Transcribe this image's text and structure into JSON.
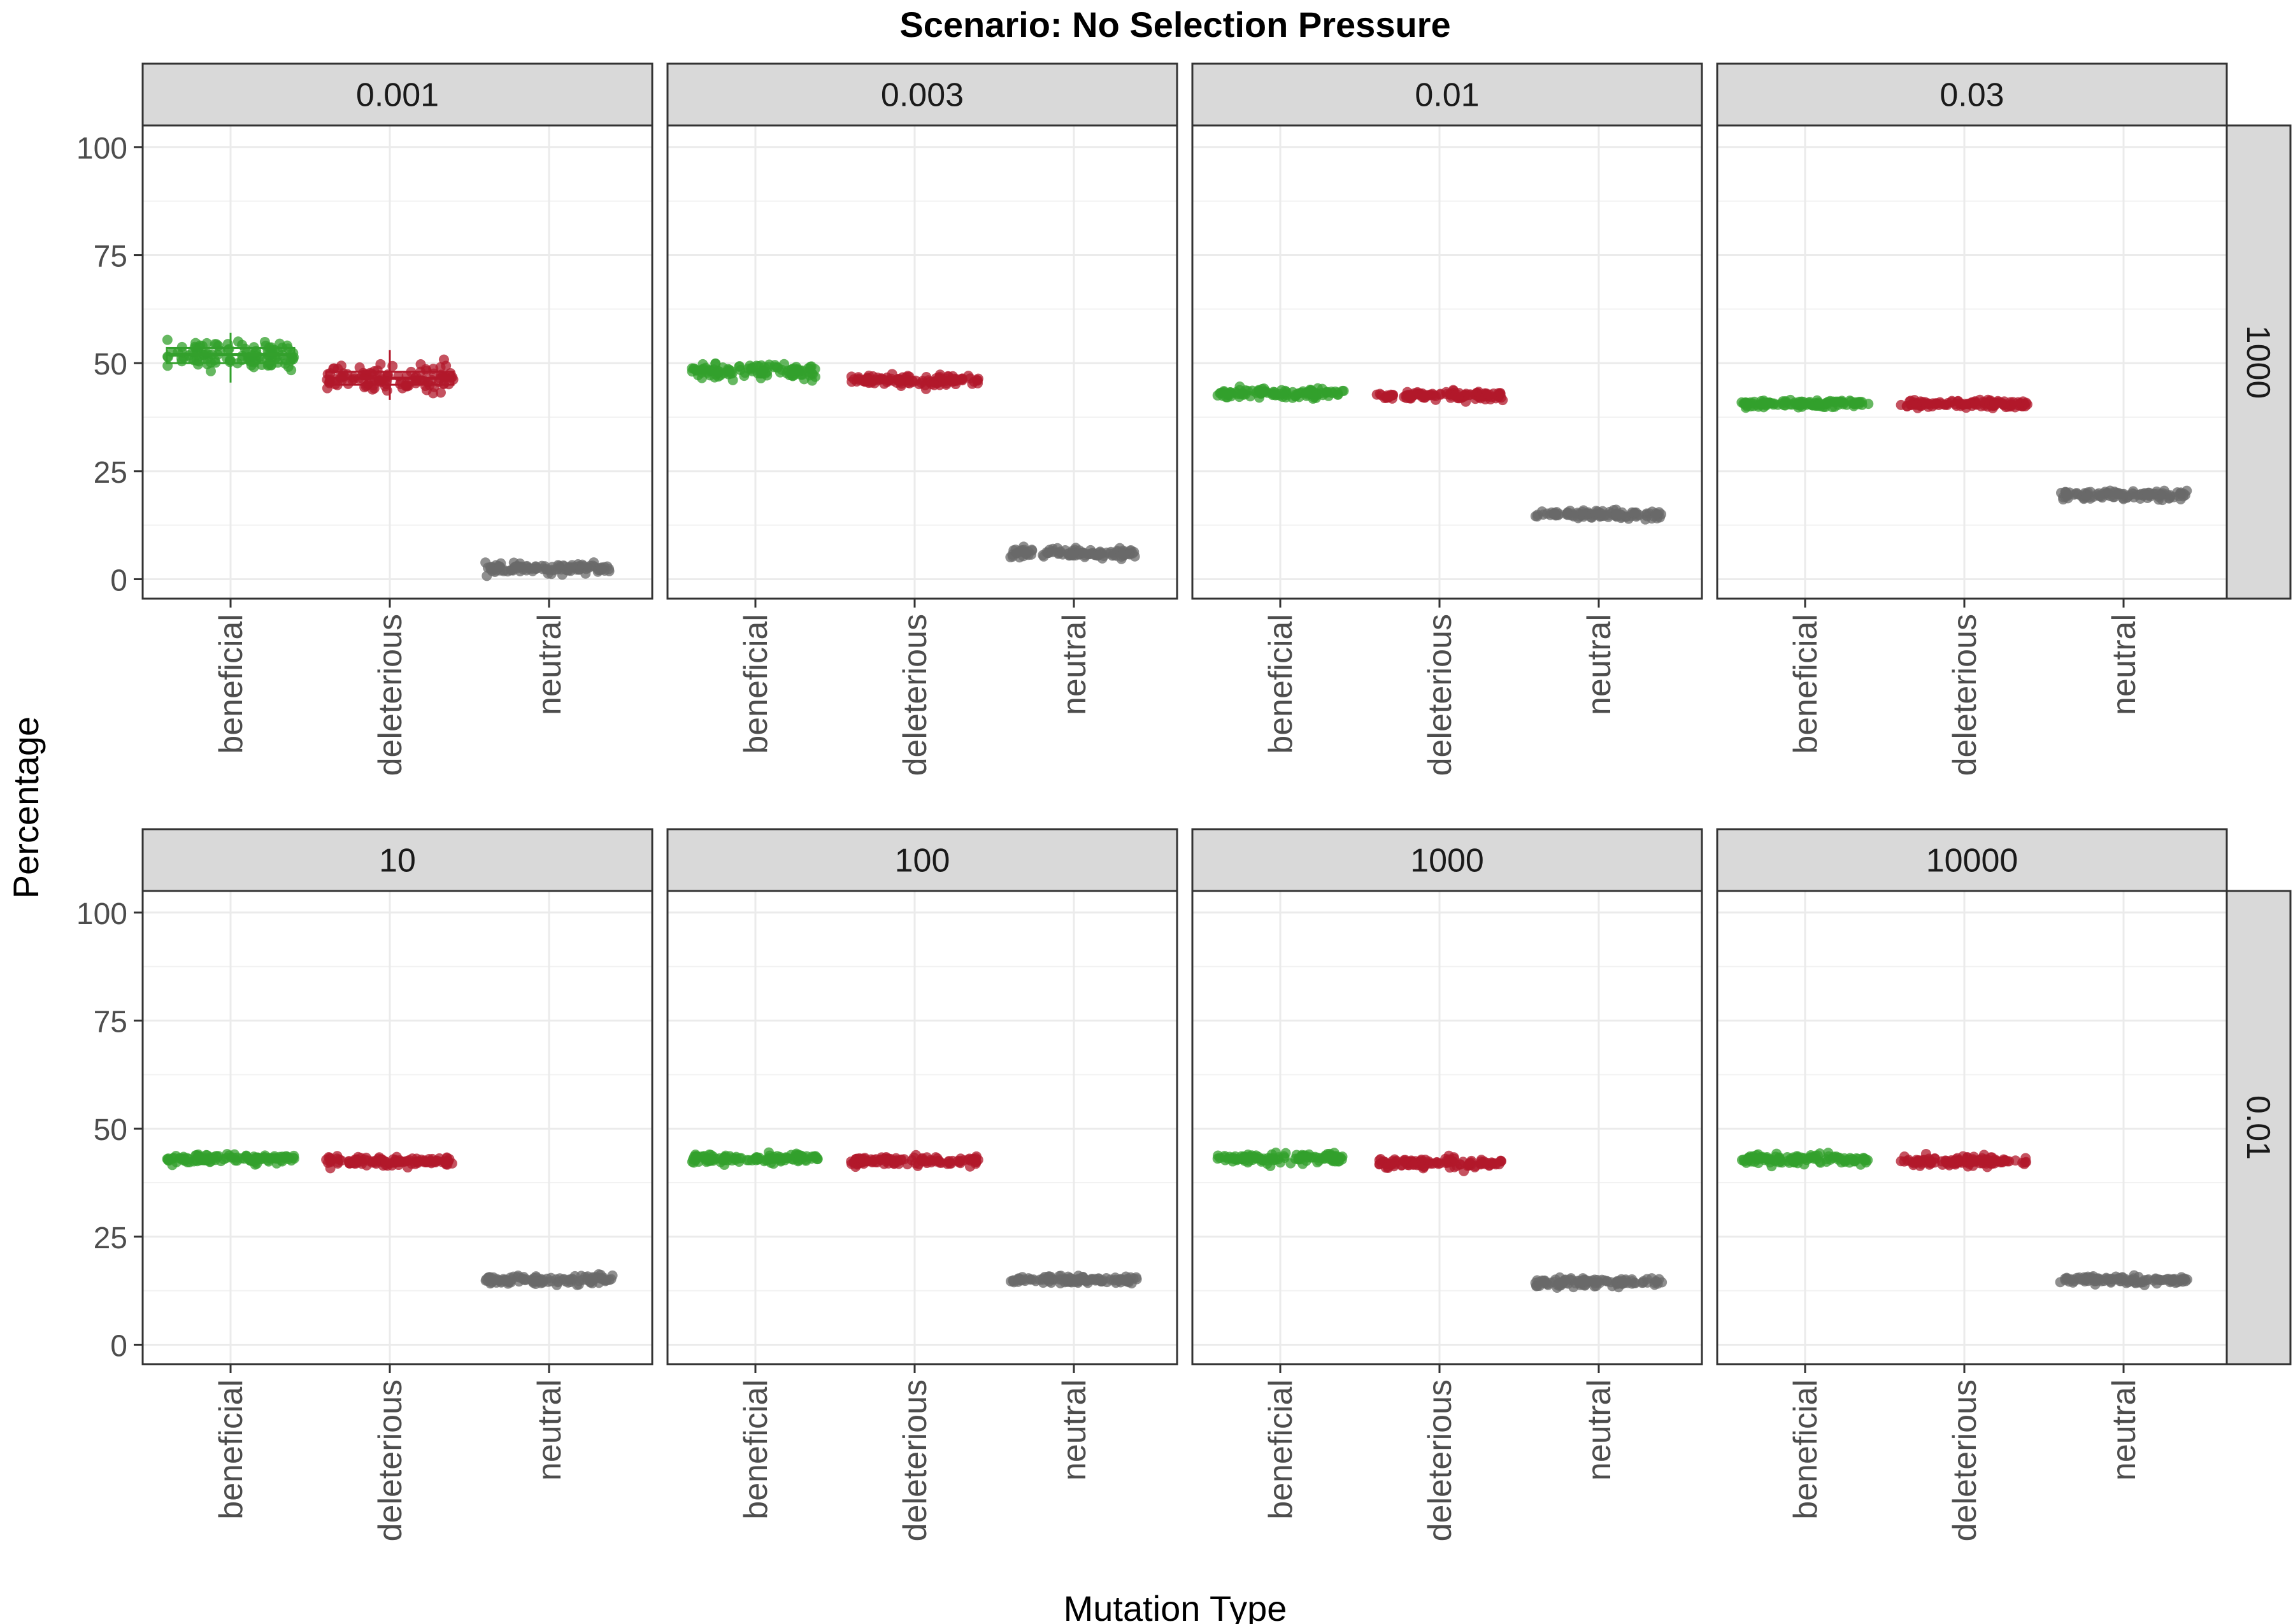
{
  "chart_data": {
    "type": "scatter",
    "title": "Scenario: No Selection Pressure",
    "xlabel": "Mutation Type",
    "ylabel": "Percentage",
    "categories": [
      "beneficial",
      "deleterious",
      "neutral"
    ],
    "ylim": [
      -4.5,
      105
    ],
    "yticks": [
      0,
      25,
      50,
      75,
      100
    ],
    "grid": true,
    "legend": "none",
    "colors": {
      "beneficial": "#33a02c",
      "deleterious": "#b2182b",
      "neutral": "#6a6a6a"
    },
    "rows": [
      {
        "strip_label": "1000",
        "panels": [
          {
            "strip_label": "0.001",
            "series": [
              {
                "category": "beneficial",
                "center": 52,
                "spread": 3.2,
                "boxplot": {
                  "q1": 50,
                  "median": 52,
                  "q3": 53.5,
                  "min": 45.5,
                  "max": 57
                }
              },
              {
                "category": "deleterious",
                "center": 46.5,
                "spread": 3.0,
                "boxplot": {
                  "q1": 45,
                  "median": 46.5,
                  "q3": 48,
                  "min": 41.5,
                  "max": 53
                }
              },
              {
                "category": "neutral",
                "center": 2.5,
                "spread": 1.0
              }
            ]
          },
          {
            "strip_label": "0.003",
            "series": [
              {
                "category": "beneficial",
                "center": 48,
                "spread": 1.6
              },
              {
                "category": "deleterious",
                "center": 46,
                "spread": 1.4
              },
              {
                "category": "neutral",
                "center": 6,
                "spread": 1.0
              }
            ]
          },
          {
            "strip_label": "0.01",
            "series": [
              {
                "category": "beneficial",
                "center": 43,
                "spread": 1.0
              },
              {
                "category": "deleterious",
                "center": 42.5,
                "spread": 1.0
              },
              {
                "category": "neutral",
                "center": 15,
                "spread": 0.9
              }
            ]
          },
          {
            "strip_label": "0.03",
            "series": [
              {
                "category": "beneficial",
                "center": 40.5,
                "spread": 0.9
              },
              {
                "category": "deleterious",
                "center": 40.5,
                "spread": 0.9
              },
              {
                "category": "neutral",
                "center": 19.5,
                "spread": 0.9
              }
            ]
          }
        ]
      },
      {
        "strip_label": "0.01",
        "panels": [
          {
            "strip_label": "10",
            "series": [
              {
                "category": "beneficial",
                "center": 43,
                "spread": 1.0
              },
              {
                "category": "deleterious",
                "center": 42.5,
                "spread": 1.0
              },
              {
                "category": "neutral",
                "center": 15,
                "spread": 1.0
              }
            ]
          },
          {
            "strip_label": "100",
            "series": [
              {
                "category": "beneficial",
                "center": 43,
                "spread": 1.1
              },
              {
                "category": "deleterious",
                "center": 42.5,
                "spread": 1.1
              },
              {
                "category": "neutral",
                "center": 15,
                "spread": 0.9
              }
            ]
          },
          {
            "strip_label": "1000",
            "series": [
              {
                "category": "beneficial",
                "center": 43,
                "spread": 1.1
              },
              {
                "category": "deleterious",
                "center": 42,
                "spread": 1.1
              },
              {
                "category": "neutral",
                "center": 14.5,
                "spread": 1.0
              }
            ]
          },
          {
            "strip_label": "10000",
            "series": [
              {
                "category": "beneficial",
                "center": 43,
                "spread": 1.0
              },
              {
                "category": "deleterious",
                "center": 42.5,
                "spread": 1.2
              },
              {
                "category": "neutral",
                "center": 15,
                "spread": 0.8
              }
            ]
          }
        ]
      }
    ]
  }
}
